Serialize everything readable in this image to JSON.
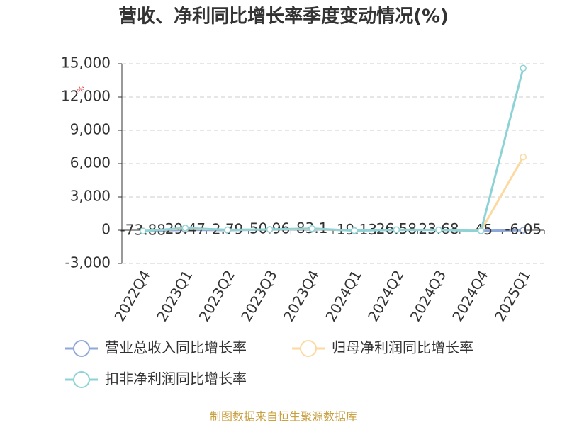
{
  "chart_data": {
    "type": "line",
    "title": "营收、净利同比增长率季度变动情况(%)",
    "y_unit": "%",
    "source": "制图数据来自恒生聚源数据库",
    "categories": [
      "2022Q4",
      "2023Q1",
      "2023Q2",
      "2023Q3",
      "2023Q4",
      "2024Q1",
      "2024Q2",
      "2024Q3",
      "2024Q4",
      "2025Q1"
    ],
    "series": [
      {
        "name": "营业总收入同比增长率",
        "color": "#8fa8d8",
        "values": [
          -73.88,
          29.47,
          2.79,
          50.96,
          83.1,
          -19.13,
          26.58,
          23.68,
          -45,
          -6.05
        ],
        "show_labels": true
      },
      {
        "name": "归母净利润同比增长率",
        "color": "#fbd9a0",
        "values": [
          -60,
          150,
          40,
          60,
          120,
          -30,
          50,
          30,
          -50,
          6600
        ]
      },
      {
        "name": "扣非净利润同比增长率",
        "color": "#8dd3d6",
        "values": [
          -80,
          200,
          30,
          70,
          150,
          -40,
          40,
          20,
          -60,
          14600
        ]
      }
    ],
    "ylim": [
      -3000,
      15000
    ],
    "yticks": [
      -3000,
      0,
      3000,
      6000,
      9000,
      12000,
      15000
    ],
    "ytick_labels": [
      {
        "value": -3000,
        "label": "-3,000"
      },
      0,
      {
        "value": 3000,
        "label": "3,000"
      },
      {
        "value": 6000,
        "label": "6,000"
      },
      {
        "value": 9000,
        "label": "9,000"
      },
      {
        "value": 12000,
        "label": "12,000"
      },
      {
        "value": 15000,
        "label": "15,000"
      }
    ],
    "grid": true
  }
}
